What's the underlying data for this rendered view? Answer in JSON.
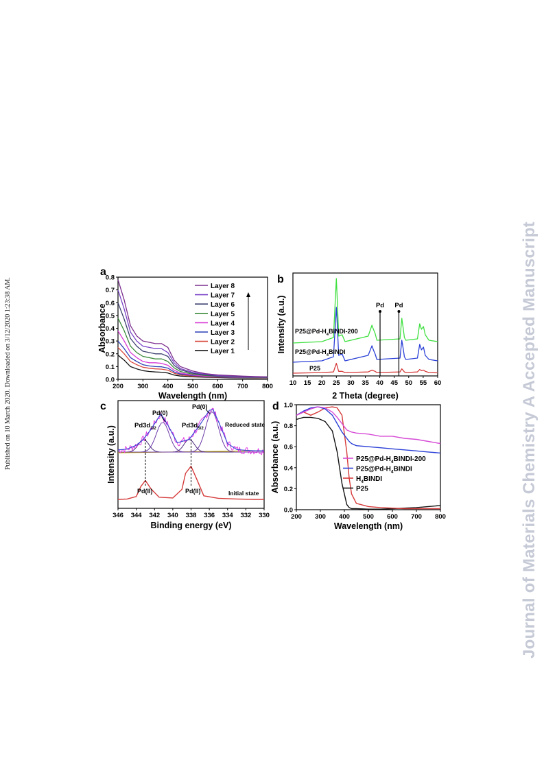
{
  "page": {
    "side_note": "Published on 10 March 2020. Downloaded on 3/12/2020 1:23:38 AM.",
    "watermark": "Journal of Materials Chemistry A Accepted Manuscript"
  },
  "chart_data": [
    {
      "panel": "a",
      "type": "line",
      "xlabel": "Wavelength (nm)",
      "ylabel": "Absorbance",
      "xlim": [
        200,
        800
      ],
      "ylim": [
        0.0,
        0.8
      ],
      "xticks": [
        "200",
        "300",
        "400",
        "500",
        "600",
        "700",
        "800"
      ],
      "yticks": [
        "0.0",
        "0.1",
        "0.2",
        "0.3",
        "0.4",
        "0.5",
        "0.6",
        "0.7",
        "0.8"
      ],
      "legend": "top-right",
      "x": [
        200,
        225,
        250,
        275,
        300,
        325,
        350,
        375,
        400,
        425,
        450,
        500,
        550,
        600,
        650,
        700,
        750,
        800
      ],
      "series": [
        {
          "name": "Layer 8",
          "color": "#7b2e8e",
          "values": [
            0.78,
            0.62,
            0.42,
            0.34,
            0.3,
            0.29,
            0.28,
            0.28,
            0.25,
            0.15,
            0.1,
            0.065,
            0.045,
            0.035,
            0.03,
            0.025,
            0.022,
            0.02
          ]
        },
        {
          "name": "Layer 7",
          "color": "#7a43c8",
          "values": [
            0.7,
            0.55,
            0.37,
            0.3,
            0.26,
            0.25,
            0.24,
            0.24,
            0.21,
            0.13,
            0.085,
            0.055,
            0.04,
            0.03,
            0.025,
            0.022,
            0.02,
            0.018
          ]
        },
        {
          "name": "Layer 6",
          "color": "#3a3f6e",
          "values": [
            0.6,
            0.47,
            0.32,
            0.26,
            0.22,
            0.21,
            0.2,
            0.2,
            0.18,
            0.11,
            0.075,
            0.048,
            0.035,
            0.027,
            0.022,
            0.02,
            0.018,
            0.016
          ]
        },
        {
          "name": "Layer 5",
          "color": "#3a8a3a",
          "values": [
            0.48,
            0.38,
            0.26,
            0.21,
            0.18,
            0.17,
            0.16,
            0.16,
            0.14,
            0.09,
            0.062,
            0.04,
            0.03,
            0.024,
            0.02,
            0.018,
            0.016,
            0.015
          ]
        },
        {
          "name": "Layer 4",
          "color": "#d63ad6",
          "values": [
            0.38,
            0.3,
            0.21,
            0.17,
            0.14,
            0.13,
            0.13,
            0.125,
            0.11,
            0.072,
            0.05,
            0.034,
            0.026,
            0.021,
            0.018,
            0.016,
            0.015,
            0.014
          ]
        },
        {
          "name": "Layer 3",
          "color": "#2a3fb5",
          "values": [
            0.3,
            0.24,
            0.17,
            0.14,
            0.115,
            0.105,
            0.1,
            0.098,
            0.088,
            0.058,
            0.042,
            0.03,
            0.023,
            0.019,
            0.016,
            0.015,
            0.014,
            0.013
          ]
        },
        {
          "name": "Layer 2",
          "color": "#d9473a",
          "values": [
            0.25,
            0.2,
            0.14,
            0.115,
            0.095,
            0.087,
            0.082,
            0.08,
            0.072,
            0.048,
            0.035,
            0.025,
            0.02,
            0.017,
            0.015,
            0.014,
            0.013,
            0.012
          ]
        },
        {
          "name": "Layer 1",
          "color": "#111111",
          "values": [
            0.19,
            0.15,
            0.1,
            0.082,
            0.068,
            0.062,
            0.058,
            0.056,
            0.05,
            0.034,
            0.026,
            0.02,
            0.016,
            0.014,
            0.012,
            0.011,
            0.01,
            0.01
          ]
        }
      ]
    },
    {
      "panel": "b",
      "type": "line",
      "xlabel": "2 Theta (degree)",
      "ylabel": "Intensity (a.u.)",
      "xlim": [
        10,
        60
      ],
      "xticks": [
        "10",
        "15",
        "20",
        "25",
        "30",
        "35",
        "40",
        "45",
        "50",
        "55",
        "60"
      ],
      "markers": [
        {
          "x": 40.1,
          "label": "Pd"
        },
        {
          "x": 46.6,
          "label": "Pd"
        }
      ],
      "x": [
        10,
        20,
        24,
        25.0,
        25.3,
        25.8,
        27,
        28,
        36,
        37.3,
        37.8,
        38.4,
        39,
        47,
        47.6,
        48.0,
        48.5,
        49,
        53,
        53.8,
        54.4,
        55.1,
        55.7,
        57,
        60
      ],
      "series": [
        {
          "name": "P25@Pd-H4BINDI-200",
          "display_label": "P25@Pd-H",
          "display_sub": "4",
          "display_rest": "BINDI-200",
          "color": "#3ee03e",
          "values": [
            0,
            0.1,
            0.4,
            4.7,
            3.2,
            0.5,
            0.6,
            0.1,
            0.5,
            1.3,
            1.0,
            0.7,
            0.2,
            0.3,
            1.8,
            1.2,
            0.4,
            0.2,
            0.3,
            1.4,
            1.0,
            1.2,
            0.6,
            0.2,
            0.1
          ]
        },
        {
          "name": "P25@Pd-H4BINDI",
          "display_label": "P25@Pd-H",
          "display_sub": "4",
          "display_rest": "BINDI",
          "color": "#2a3fd6",
          "values": [
            0,
            0.1,
            0.4,
            4.0,
            2.8,
            0.5,
            0.6,
            0.1,
            0.5,
            1.2,
            0.9,
            0.6,
            0.2,
            0.3,
            1.6,
            1.1,
            0.4,
            0.2,
            0.3,
            1.3,
            0.9,
            1.1,
            0.5,
            0.2,
            0.1
          ]
        },
        {
          "name": "P25",
          "display_label": "P25",
          "display_sub": "",
          "display_rest": "",
          "color": "#d63a3a",
          "values": [
            0,
            0.1,
            0.2,
            1.6,
            1.1,
            0.3,
            0.3,
            0.1,
            0.2,
            0.5,
            0.4,
            0.3,
            0.1,
            0.2,
            0.7,
            0.5,
            0.2,
            0.1,
            0.2,
            0.6,
            0.4,
            0.5,
            0.3,
            0.1,
            0.05
          ]
        }
      ]
    },
    {
      "panel": "c",
      "type": "line",
      "xlabel": "Binding energy (eV)",
      "ylabel": "Intensity (a.u.)",
      "xlim": [
        346,
        330
      ],
      "xticks": [
        "346",
        "344",
        "342",
        "340",
        "338",
        "336",
        "334",
        "332",
        "330"
      ],
      "annotations": {
        "pd3d32_main": "Pd3d",
        "pd3d32_sub": "3/2",
        "pd3d52_main": "Pd3d",
        "pd3d52_sub": "5/2",
        "pd0_left": "Pd(0)",
        "pd0_right": "Pd(0)",
        "pdII_left": "Pd(II)",
        "pdII_right": "Pd(II)",
        "reduced": "Reduced state",
        "initial": "Initial state"
      },
      "reduced_state": {
        "x": [
          346,
          345,
          344,
          343.3,
          342.5,
          341.3,
          340.5,
          339.5,
          338.2,
          337,
          336,
          335.6,
          335,
          334,
          333,
          332,
          331,
          330
        ],
        "values": [
          0.05,
          0.07,
          0.16,
          0.28,
          0.5,
          0.9,
          0.62,
          0.22,
          0.3,
          0.65,
          0.98,
          1.0,
          0.72,
          0.2,
          0.06,
          0.04,
          0.03,
          0.03
        ]
      },
      "initial_state": {
        "x": [
          346,
          345,
          344,
          343.5,
          343.0,
          342.4,
          341.5,
          340,
          339,
          338.6,
          338.0,
          337.4,
          336.6,
          335,
          333,
          331,
          330
        ],
        "values": [
          0.02,
          0.03,
          0.1,
          0.38,
          0.55,
          0.32,
          0.08,
          0.06,
          0.3,
          0.75,
          0.95,
          0.6,
          0.12,
          0.05,
          0.03,
          0.02,
          0.02
        ]
      },
      "dashed_positions": [
        343.0,
        338.0
      ]
    },
    {
      "panel": "d",
      "type": "line",
      "xlabel": "Wavelength (nm)",
      "ylabel": "Absorbance (a.u.)",
      "xlim": [
        200,
        800
      ],
      "ylim": [
        0.0,
        1.0
      ],
      "xticks": [
        "200",
        "300",
        "400",
        "500",
        "600",
        "700",
        "800"
      ],
      "yticks": [
        "0.0",
        "0.2",
        "0.4",
        "0.6",
        "0.8",
        "1.0"
      ],
      "legend": "bottom-right",
      "x": [
        200,
        230,
        260,
        290,
        320,
        350,
        370,
        390,
        410,
        420,
        430,
        450,
        500,
        550,
        600,
        650,
        700,
        750,
        800
      ],
      "series": [
        {
          "name": "P25@Pd-H4BINDI-200",
          "display_label": "P25@Pd-H",
          "display_sub": "4",
          "display_rest": "BINDI-200",
          "color": "#d64ad6",
          "values": [
            0.9,
            0.93,
            0.96,
            0.98,
            0.97,
            0.93,
            0.88,
            0.82,
            0.76,
            0.75,
            0.74,
            0.73,
            0.72,
            0.7,
            0.7,
            0.68,
            0.67,
            0.65,
            0.63
          ]
        },
        {
          "name": "P25@Pd-H4BINDI",
          "display_label": "P25@Pd-H",
          "display_sub": "4",
          "display_rest": "BINDI",
          "color": "#2a3fd6",
          "values": [
            0.9,
            0.94,
            0.97,
            0.98,
            0.96,
            0.9,
            0.82,
            0.74,
            0.68,
            0.65,
            0.63,
            0.61,
            0.6,
            0.59,
            0.58,
            0.57,
            0.56,
            0.55,
            0.54
          ]
        },
        {
          "name": "H4BINDI",
          "display_label": "H",
          "display_sub": "4",
          "display_rest": "BINDI",
          "color": "#d63a3a",
          "values": [
            0.9,
            0.93,
            0.9,
            0.93,
            0.97,
            0.98,
            0.97,
            0.9,
            0.55,
            0.3,
            0.15,
            0.06,
            0.03,
            0.02,
            0.015,
            0.01,
            0.01,
            0.01,
            0.01
          ]
        },
        {
          "name": "P25",
          "display_label": "P25",
          "display_sub": "",
          "display_rest": "",
          "color": "#111111",
          "values": [
            0.86,
            0.88,
            0.88,
            0.87,
            0.84,
            0.75,
            0.55,
            0.25,
            0.05,
            0.02,
            0.01,
            0.01,
            0.005,
            0.005,
            0.01,
            0.015,
            0.02,
            0.03,
            0.04
          ]
        }
      ]
    }
  ]
}
